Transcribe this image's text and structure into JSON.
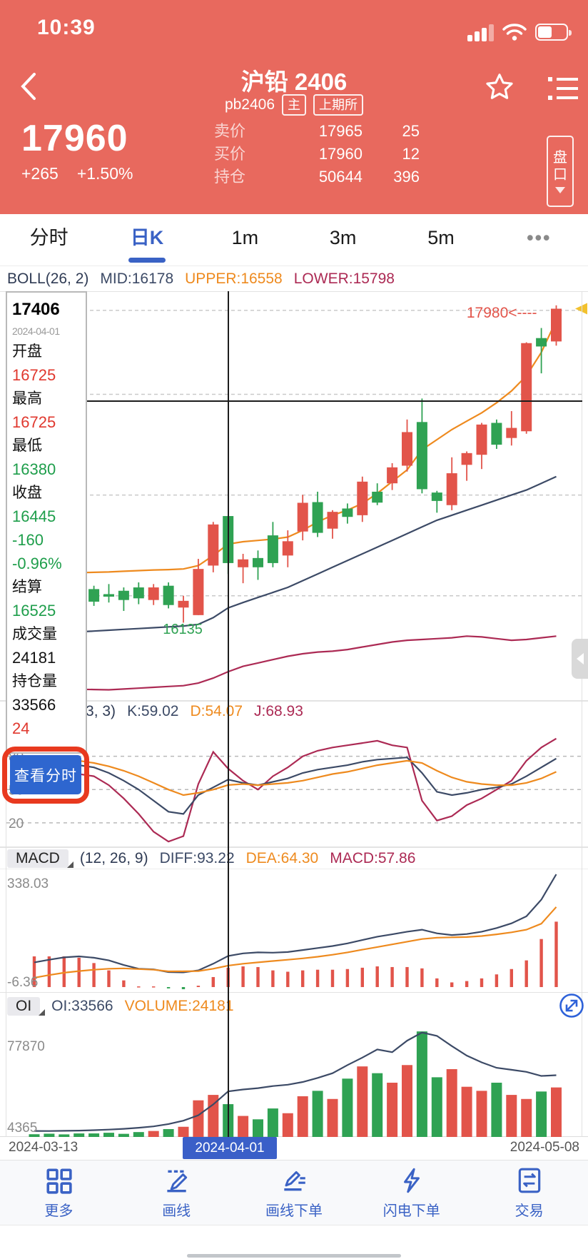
{
  "colors": {
    "coral": "#E8695E",
    "accent_blue": "#3A62C5",
    "button_blue": "#2E66CF",
    "candle_up_red": "#E2544A",
    "candle_down_green": "#2FA253",
    "navy": "#3C4A66",
    "orange": "#EE8A1E",
    "crimson": "#AC2A54",
    "ring_red": "#E8391F",
    "grid_gray": "#C9C9C9",
    "label_gray": "#999999",
    "marker_yellow": "#F2C12E"
  },
  "status_bar": {
    "time": "10:39"
  },
  "header": {
    "title": "沪铅 2406",
    "code": "pb2406",
    "badge_main": "主",
    "badge_exchange": "上期所",
    "last_price": "17960",
    "change": "+265",
    "change_pct": "+1.50%",
    "quote_rows": [
      {
        "label": "卖价",
        "value": "17965",
        "qty": "25"
      },
      {
        "label": "买价",
        "value": "17960",
        "qty": "12"
      },
      {
        "label": "持仓",
        "value": "50644",
        "qty": "396"
      }
    ],
    "depth_button": "盘口"
  },
  "tabs": {
    "items": [
      "分时",
      "日K",
      "1m",
      "3m",
      "5m",
      "•••"
    ],
    "active_index": 1
  },
  "info_panel": {
    "rows": [
      {
        "text": "17406",
        "style": "big"
      },
      {
        "text": "2024-04-01",
        "style": "date"
      },
      {
        "text": "开盘",
        "style": "label"
      },
      {
        "text": "16725",
        "style": "red"
      },
      {
        "text": "最高",
        "style": "label"
      },
      {
        "text": "16725",
        "style": "red"
      },
      {
        "text": "最低",
        "style": "label"
      },
      {
        "text": "16380",
        "style": "green"
      },
      {
        "text": "收盘",
        "style": "label"
      },
      {
        "text": "16445",
        "style": "green"
      },
      {
        "text": "-160",
        "style": "green"
      },
      {
        "text": "-0.96%",
        "style": "green"
      },
      {
        "text": "结算",
        "style": "label"
      },
      {
        "text": "16525",
        "style": "green"
      },
      {
        "text": "成交量",
        "style": "label"
      },
      {
        "text": "24181",
        "style": "black"
      },
      {
        "text": "持仓量",
        "style": "label"
      },
      {
        "text": "33566",
        "style": "black"
      },
      {
        "text": "24",
        "style": "red"
      }
    ],
    "view_intraday_label": "查看分时"
  },
  "chart_data": [
    {
      "type": "candlestick",
      "header": {
        "name": "BOLL(26, 2)",
        "mid": "MID:16178",
        "upper": "UPPER:16558",
        "lower": "LOWER:15798"
      },
      "ylim": [
        15620,
        18060
      ],
      "gridline_prices": [
        17950,
        17450,
        16850,
        16250
      ],
      "crosshair": {
        "index": 13,
        "price": 17406,
        "date": "2024-04-01"
      },
      "ohlc": [
        [
          16310,
          16335,
          16245,
          16270
        ],
        [
          16285,
          16320,
          16230,
          16255
        ],
        [
          16270,
          16300,
          16200,
          16240
        ],
        [
          16260,
          16290,
          16180,
          16215
        ],
        [
          16290,
          16310,
          16190,
          16215
        ],
        [
          16260,
          16320,
          16210,
          16245
        ],
        [
          16280,
          16300,
          16160,
          16225
        ],
        [
          16300,
          16330,
          16200,
          16235
        ],
        [
          16225,
          16320,
          16195,
          16300
        ],
        [
          16310,
          16330,
          16175,
          16195
        ],
        [
          16180,
          16250,
          16090,
          16220
        ],
        [
          16135,
          16470,
          16135,
          16410
        ],
        [
          16430,
          16690,
          16390,
          16675
        ],
        [
          16725,
          16725,
          16380,
          16445
        ],
        [
          16420,
          16500,
          16325,
          16467
        ],
        [
          16475,
          16520,
          16345,
          16420
        ],
        [
          16610,
          16690,
          16420,
          16445
        ],
        [
          16490,
          16640,
          16420,
          16575
        ],
        [
          16633,
          16851,
          16580,
          16804
        ],
        [
          16808,
          16870,
          16600,
          16625
        ],
        [
          16650,
          16760,
          16590,
          16750
        ],
        [
          16770,
          16800,
          16680,
          16720
        ],
        [
          16730,
          16960,
          16690,
          16930
        ],
        [
          16870,
          16920,
          16790,
          16805
        ],
        [
          16920,
          17040,
          16880,
          17015
        ],
        [
          17025,
          17300,
          16990,
          17225
        ],
        [
          17285,
          17425,
          16860,
          16885
        ],
        [
          16865,
          16875,
          16745,
          16815
        ],
        [
          16790,
          17075,
          16760,
          16980
        ],
        [
          17030,
          17110,
          16935,
          17100
        ],
        [
          17090,
          17280,
          17005,
          17270
        ],
        [
          17280,
          17300,
          17125,
          17150
        ],
        [
          17190,
          17350,
          17145,
          17250
        ],
        [
          17230,
          17760,
          17215,
          17755
        ],
        [
          17785,
          17845,
          17575,
          17735
        ],
        [
          17765,
          17980,
          17740,
          17960
        ]
      ],
      "boll_upper": [
        16385,
        16386,
        16387,
        16388,
        16390,
        16392,
        16396,
        16400,
        16404,
        16406,
        16410,
        16430,
        16490,
        16558,
        16572,
        16580,
        16588,
        16600,
        16640,
        16690,
        16730,
        16760,
        16800,
        16860,
        16930,
        17000,
        17120,
        17180,
        17240,
        17290,
        17340,
        17400,
        17470,
        17560,
        17700,
        17890
      ],
      "boll_mid": [
        16020,
        16025,
        16030,
        16035,
        16040,
        16045,
        16050,
        16055,
        16060,
        16065,
        16070,
        16080,
        16120,
        16178,
        16210,
        16240,
        16270,
        16300,
        16340,
        16380,
        16420,
        16460,
        16500,
        16540,
        16580,
        16620,
        16660,
        16700,
        16730,
        16760,
        16790,
        16820,
        16850,
        16880,
        16920,
        16960
      ],
      "boll_lower": [
        15700,
        15698,
        15695,
        15693,
        15692,
        15690,
        15695,
        15700,
        15705,
        15710,
        15715,
        15730,
        15760,
        15798,
        15830,
        15850,
        15870,
        15890,
        15905,
        15915,
        15920,
        15930,
        15945,
        15960,
        15975,
        15985,
        15990,
        15995,
        16000,
        16010,
        16005,
        15995,
        15985,
        15990,
        16000,
        16010
      ],
      "annotations": {
        "high_label": {
          "text": "17980<----",
          "price": 17980,
          "index": 35
        },
        "low_label": {
          "text": "16135",
          "price": 16135,
          "index": 11
        },
        "current_price_marker": 17960
      }
    },
    {
      "type": "line",
      "header": {
        "name": "KDJ",
        "params": "(9, 3, 3)",
        "k": "K:59.02",
        "d": "D:54.07",
        "j": "J:68.93"
      },
      "ylim": [
        -2,
        112
      ],
      "gridlines": [
        80,
        50,
        20
      ],
      "k": [
        78,
        76,
        74,
        72,
        70,
        65,
        58,
        50,
        40,
        30,
        28,
        45,
        52,
        59.02,
        56,
        54,
        57,
        60,
        65,
        68,
        70,
        72,
        75,
        77,
        78,
        79,
        65,
        48,
        45,
        47,
        50,
        52,
        55,
        62,
        70,
        78
      ],
      "d": [
        80,
        79,
        78,
        76,
        74,
        71,
        67,
        62,
        56,
        50,
        45,
        47,
        50,
        54.07,
        55,
        54,
        55,
        56,
        58,
        61,
        64,
        66,
        69,
        72,
        74,
        76,
        74,
        67,
        61,
        57,
        55,
        54,
        54,
        56,
        60,
        66
      ],
      "j": [
        72,
        70,
        66,
        64,
        62,
        54,
        42,
        28,
        12,
        3,
        8,
        55,
        84,
        68.93,
        58,
        50,
        62,
        70,
        80,
        85,
        88,
        90,
        92,
        94,
        90,
        88,
        40,
        22,
        26,
        36,
        42,
        50,
        58,
        76,
        88,
        96
      ]
    },
    {
      "type": "macd",
      "header": {
        "name": "MACD",
        "params": "(12, 26, 9)",
        "diff": "DIFF:93.22",
        "dea": "DEA:64.30",
        "macd": "MACD:57.86"
      },
      "ylim": [
        -15,
        353
      ],
      "max_label": "338.03",
      "min_label": "-6.36",
      "diff": [
        74,
        82,
        89,
        92,
        88,
        80,
        66,
        55,
        53,
        45,
        44,
        50,
        70,
        93.22,
        101,
        104,
        103,
        105,
        111,
        117,
        123,
        131,
        141,
        151,
        158,
        166,
        172,
        161,
        156,
        159,
        166,
        177,
        191,
        212,
        262,
        338.03
      ],
      "dea": [
        28,
        36,
        43,
        48,
        52,
        55,
        56,
        54,
        52,
        47,
        47.18,
        48,
        55,
        64.3,
        70,
        74,
        78,
        82,
        86,
        91,
        97,
        104,
        112,
        120,
        128,
        136,
        144,
        148,
        149,
        150,
        153,
        158,
        164,
        172,
        190,
        240
      ]
    },
    {
      "type": "bar",
      "header": {
        "name": "OI",
        "oi": "OI:33566",
        "volume": "VOLUME:24181"
      },
      "ylim": [
        0,
        86800
      ],
      "max_label": "77870",
      "min_label": "4365",
      "volumes": [
        2000,
        2400,
        1900,
        2600,
        2600,
        3100,
        2300,
        3600,
        4400,
        5800,
        7500,
        27000,
        31000,
        24181,
        15500,
        13000,
        21000,
        17500,
        30000,
        34000,
        28000,
        43000,
        52000,
        47000,
        40000,
        53000,
        77800,
        44000,
        50000,
        37000,
        34000,
        40000,
        31000,
        28000,
        33500,
        36500
      ],
      "oi_line": [
        4400,
        4365,
        4500,
        4700,
        5000,
        5400,
        6000,
        6800,
        7800,
        9500,
        12000,
        16000,
        24000,
        33566,
        35000,
        36000,
        37500,
        38500,
        40500,
        43500,
        47000,
        53000,
        58500,
        64500,
        62500,
        71000,
        77000,
        74500,
        67000,
        60000,
        55000,
        51000,
        49500,
        48000,
        45000,
        45500
      ]
    }
  ],
  "footer": {
    "dates": [
      "2024-03-13",
      "2024-04-01",
      "2024-05-08"
    ],
    "toolbar": [
      {
        "icon": "grid-icon",
        "label": "更多"
      },
      {
        "icon": "draw-line-icon",
        "label": "画线"
      },
      {
        "icon": "draw-order-icon",
        "label": "画线下单"
      },
      {
        "icon": "flash-order-icon",
        "label": "闪电下单"
      },
      {
        "icon": "trade-icon",
        "label": "交易"
      }
    ]
  }
}
